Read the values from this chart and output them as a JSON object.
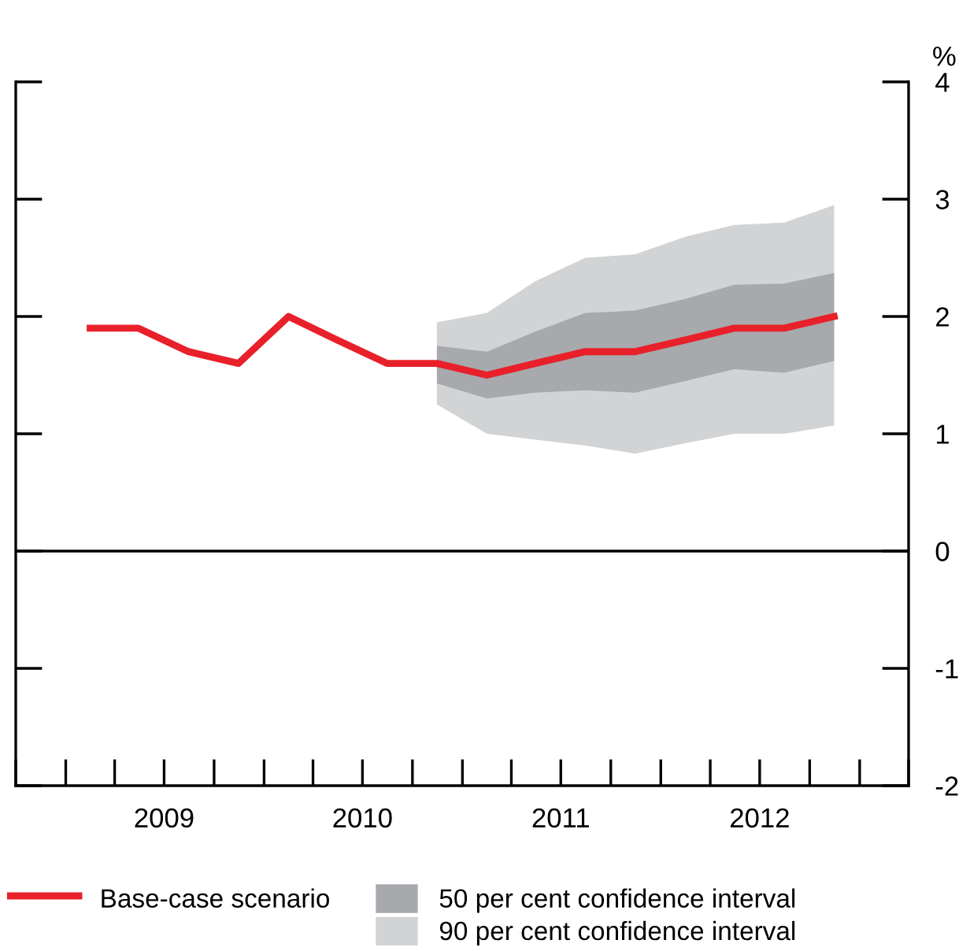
{
  "chart_data": {
    "type": "line",
    "ylabel": "%",
    "xlim": [
      "2008-10-01",
      "2013-04-01"
    ],
    "xticks": [
      {
        "value": "2009-07-01",
        "label": "2009"
      },
      {
        "value": "2010-07-01",
        "label": "2010"
      },
      {
        "value": "2011-07-01",
        "label": "2011"
      },
      {
        "value": "2012-07-01",
        "label": "2012"
      }
    ],
    "ylim": [
      -2,
      4
    ],
    "yticks": [
      -2,
      -1,
      0,
      1,
      2,
      3,
      4
    ],
    "grid": false,
    "legend": "bottom",
    "marker": "none",
    "line_style": "solid",
    "ref_lines": [
      {
        "axis": "y",
        "value": 0,
        "label": null,
        "color": "#000000"
      }
    ],
    "series": [
      {
        "name": "90 per cent confidence interval",
        "type": "area",
        "color": "#d1d3d4",
        "x": [
          "2010-11-15",
          "2011-02-15",
          "2011-05-15",
          "2011-08-15",
          "2011-11-15",
          "2012-02-15",
          "2012-05-15",
          "2012-08-15",
          "2012-11-15"
        ],
        "values": [
          null,
          null,
          null,
          null,
          null,
          null,
          null,
          null,
          null
        ],
        "lower": [
          1.25,
          1.0,
          0.95,
          0.9,
          0.83,
          0.92,
          1.0,
          1.0,
          1.07
        ],
        "upper": [
          1.95,
          2.03,
          2.3,
          2.5,
          2.53,
          2.68,
          2.78,
          2.8,
          2.95
        ]
      },
      {
        "name": "50 per cent confidence interval",
        "type": "area",
        "color": "#a7a9ac",
        "x": [
          "2010-11-15",
          "2011-02-15",
          "2011-05-15",
          "2011-08-15",
          "2011-11-15",
          "2012-02-15",
          "2012-05-15",
          "2012-08-15",
          "2012-11-15"
        ],
        "values": [
          null,
          null,
          null,
          null,
          null,
          null,
          null,
          null,
          null
        ],
        "lower": [
          1.43,
          1.3,
          1.35,
          1.37,
          1.35,
          1.45,
          1.55,
          1.52,
          1.62
        ],
        "upper": [
          1.75,
          1.7,
          1.87,
          2.03,
          2.05,
          2.15,
          2.27,
          2.28,
          2.37
        ]
      },
      {
        "name": "Base-case scenario",
        "color": "#e8202a",
        "x": [
          "2009-02-15",
          "2009-05-15",
          "2009-08-15",
          "2009-11-15",
          "2010-02-15",
          "2010-05-15",
          "2010-08-15",
          "2010-11-15",
          "2011-02-15",
          "2011-05-15",
          "2011-08-15",
          "2011-11-15",
          "2012-02-15",
          "2012-05-15",
          "2012-08-15",
          "2012-11-15"
        ],
        "values": [
          1.9,
          1.9,
          1.7,
          1.6,
          2.0,
          1.8,
          1.6,
          1.6,
          1.5,
          1.6,
          1.7,
          1.7,
          1.8,
          1.9,
          1.9,
          2.0
        ]
      }
    ]
  }
}
